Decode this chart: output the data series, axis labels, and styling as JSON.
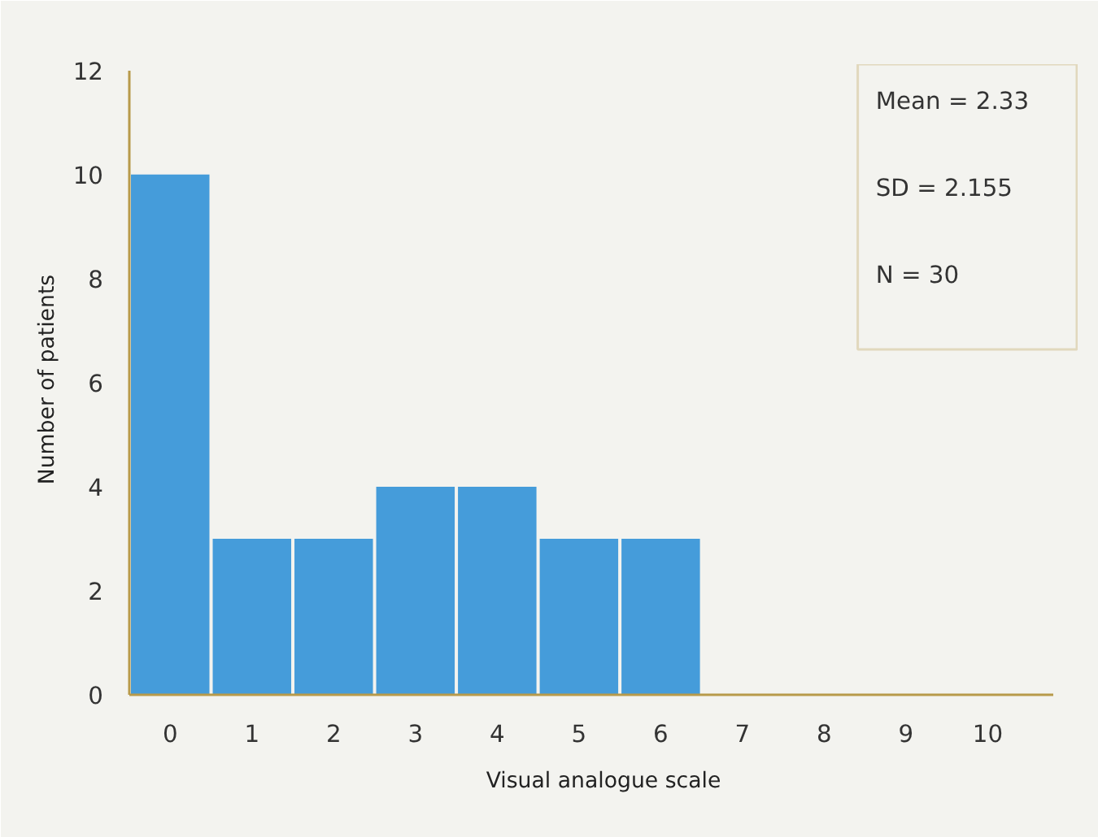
{
  "chart_data": {
    "type": "bar",
    "xlabel": "Visual analogue scale",
    "ylabel": "Number of patients",
    "categories": [
      "0",
      "1",
      "2",
      "3",
      "4",
      "5",
      "6",
      "7",
      "8",
      "9",
      "10"
    ],
    "values": [
      10,
      3,
      3,
      4,
      4,
      3,
      3,
      0,
      0,
      0,
      0
    ],
    "color": "#459cda",
    "ylim": [
      0,
      12
    ],
    "yticks": [
      0,
      2,
      4,
      6,
      8,
      10,
      12
    ],
    "grid": false,
    "annotations": [
      "Mean = 2.33",
      "SD = 2.155",
      "N = 30"
    ]
  }
}
